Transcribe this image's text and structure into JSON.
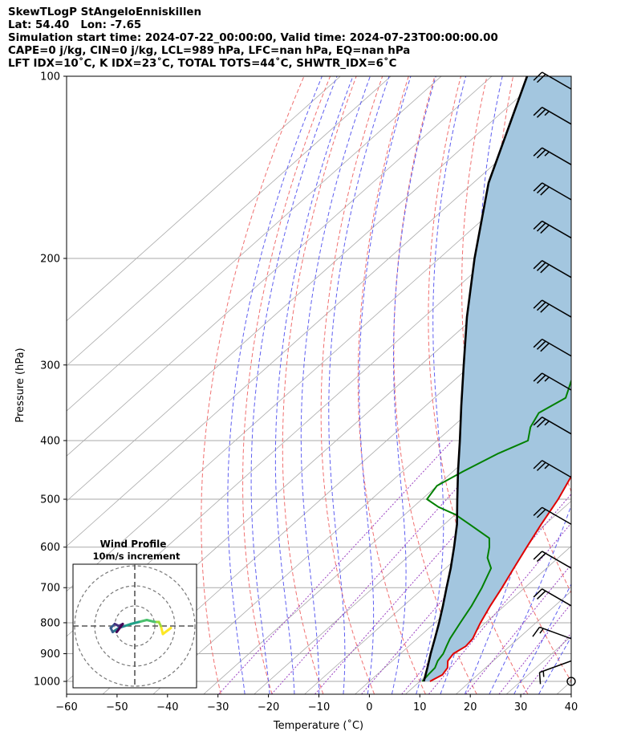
{
  "header": {
    "title": "SkewTLogP StAngeloEnniskillen",
    "location": "Lat: 54.40   Lon: -7.65",
    "times": "Simulation start time: 2024-07-22_00:00:00, Valid time: 2024-07-23T00:00:00.00",
    "params1": "CAPE=0 j/kg, CIN=0 j/kg, LCL=989 hPa, LFC=nan hPa, EQ=nan hPa",
    "params2": "LFT IDX=10˚C, K IDX=23˚C, TOTAL TOTS=44˚C, SHWTR_IDX=6˚C"
  },
  "colors": {
    "temperature": "#e00000",
    "dewpoint": "#008000",
    "parcel": "#000000",
    "cape_fill": "#a3c6df",
    "dry_adiabat": "#f07070",
    "moist_adiabat": "#5f5ff0",
    "mixing_ratio": "#9a40c0",
    "isotherm": "#aaaaaa",
    "barb": "#000000"
  },
  "chart_data": {
    "type": "line",
    "xlabel": "Temperature (˚C)",
    "ylabel": "Pressure (hPa)",
    "xlim": [
      -60,
      40
    ],
    "ylim": [
      1050,
      100
    ],
    "yscale": "log",
    "skewed": true,
    "x_ticks": [
      -60,
      -50,
      -40,
      -30,
      -20,
      -10,
      0,
      10,
      20,
      30,
      40
    ],
    "y_ticks": [
      1000,
      900,
      800,
      700,
      600,
      500,
      400,
      300,
      200,
      100
    ],
    "grid": true,
    "series": [
      {
        "role": "temperature",
        "points": [
          [
            1000,
            12
          ],
          [
            975,
            13
          ],
          [
            950,
            12.5
          ],
          [
            925,
            11
          ],
          [
            900,
            10.5
          ],
          [
            875,
            11.3
          ],
          [
            850,
            11
          ],
          [
            825,
            10
          ],
          [
            800,
            9
          ],
          [
            750,
            7.2
          ],
          [
            700,
            5.5
          ],
          [
            650,
            3.5
          ],
          [
            600,
            1.4
          ],
          [
            550,
            -0.8
          ],
          [
            500,
            -3
          ],
          [
            450,
            -6
          ],
          [
            400,
            -9.5
          ],
          [
            350,
            -14
          ],
          [
            320,
            -17.5
          ],
          [
            300,
            -21.5
          ],
          [
            290,
            -24
          ],
          [
            270,
            -27
          ],
          [
            250,
            -30
          ],
          [
            230,
            -34
          ],
          [
            210,
            -38
          ],
          [
            190,
            -43
          ],
          [
            175,
            -47.5
          ],
          [
            165,
            -51
          ],
          [
            150,
            -55
          ],
          [
            130,
            -60
          ],
          [
            120,
            -63
          ],
          [
            110,
            -66
          ],
          [
            100,
            -69
          ]
        ]
      },
      {
        "role": "dewpoint",
        "points": [
          [
            1000,
            10.5
          ],
          [
            975,
            10.2
          ],
          [
            950,
            10
          ],
          [
            925,
            9
          ],
          [
            900,
            8.5
          ],
          [
            875,
            7.5
          ],
          [
            850,
            6.5
          ],
          [
            800,
            5
          ],
          [
            750,
            3.5
          ],
          [
            700,
            1.5
          ],
          [
            650,
            -1
          ],
          [
            625,
            -4
          ],
          [
            600,
            -6
          ],
          [
            580,
            -8
          ],
          [
            550,
            -15
          ],
          [
            530,
            -20
          ],
          [
            515,
            -25
          ],
          [
            500,
            -29
          ],
          [
            475,
            -30
          ],
          [
            450,
            -28
          ],
          [
            420,
            -25
          ],
          [
            400,
            -22
          ],
          [
            380,
            -24.5
          ],
          [
            360,
            -26
          ],
          [
            340,
            -24
          ],
          [
            320,
            -26.5
          ],
          [
            300,
            -29
          ],
          [
            280,
            -31.5
          ],
          [
            260,
            -33
          ],
          [
            240,
            -36
          ],
          [
            220,
            -38
          ],
          [
            205,
            -41
          ],
          [
            190,
            -46
          ],
          [
            180,
            -54
          ],
          [
            160,
            -62
          ],
          [
            140,
            -68
          ],
          [
            120,
            -73
          ],
          [
            100,
            -80
          ]
        ]
      },
      {
        "role": "parcel",
        "points": [
          [
            1000,
            10.8
          ],
          [
            950,
            8.5
          ],
          [
            900,
            6
          ],
          [
            850,
            3.5
          ],
          [
            800,
            0.8
          ],
          [
            750,
            -2.2
          ],
          [
            700,
            -5.5
          ],
          [
            650,
            -9
          ],
          [
            600,
            -13
          ],
          [
            550,
            -17.5
          ],
          [
            500,
            -23
          ],
          [
            450,
            -29
          ],
          [
            400,
            -35.5
          ],
          [
            350,
            -43
          ],
          [
            300,
            -51.5
          ],
          [
            250,
            -61.5
          ],
          [
            200,
            -73
          ],
          [
            150,
            -87
          ],
          [
            100,
            -103
          ]
        ]
      }
    ],
    "cape_shading": true,
    "dry_adiabats_theta_C": [
      -30,
      -20,
      -10,
      0,
      10,
      20,
      30,
      40,
      50,
      60,
      70,
      80,
      90,
      100,
      110,
      120,
      130,
      140
    ],
    "moist_adiabats_thetaw_C": [
      -25,
      -20,
      -15,
      -10,
      -5,
      0,
      5,
      10,
      15,
      20,
      25,
      30,
      35
    ],
    "mixing_ratio_gkg": [
      0.4,
      1,
      2,
      4,
      7,
      10,
      16,
      24,
      32
    ],
    "wind_barbs": [
      {
        "p": 1000,
        "speed_kt": 0,
        "dir_deg": 0
      },
      {
        "p": 925,
        "speed_kt": 15,
        "dir_deg": 250
      },
      {
        "p": 850,
        "speed_kt": 15,
        "dir_deg": 290
      },
      {
        "p": 750,
        "speed_kt": 20,
        "dir_deg": 300
      },
      {
        "p": 650,
        "speed_kt": 20,
        "dir_deg": 300
      },
      {
        "p": 550,
        "speed_kt": 20,
        "dir_deg": 300
      },
      {
        "p": 460,
        "speed_kt": 25,
        "dir_deg": 300
      },
      {
        "p": 390,
        "speed_kt": 25,
        "dir_deg": 300
      },
      {
        "p": 330,
        "speed_kt": 25,
        "dir_deg": 300
      },
      {
        "p": 290,
        "speed_kt": 30,
        "dir_deg": 300
      },
      {
        "p": 250,
        "speed_kt": 30,
        "dir_deg": 300
      },
      {
        "p": 215,
        "speed_kt": 30,
        "dir_deg": 300
      },
      {
        "p": 185,
        "speed_kt": 30,
        "dir_deg": 300
      },
      {
        "p": 160,
        "speed_kt": 30,
        "dir_deg": 300
      },
      {
        "p": 140,
        "speed_kt": 25,
        "dir_deg": 300
      },
      {
        "p": 120,
        "speed_kt": 25,
        "dir_deg": 300
      },
      {
        "p": 105,
        "speed_kt": 20,
        "dir_deg": 300
      }
    ],
    "inset": {
      "title": "Wind Profile",
      "subtitle": "10m/s increment",
      "rings_ms": [
        10,
        20,
        30
      ],
      "hodograph_uv": [
        [
          18,
          -1
        ],
        [
          14,
          -4
        ],
        [
          13,
          0
        ],
        [
          12,
          2
        ],
        [
          10,
          2
        ],
        [
          6,
          3
        ],
        [
          2,
          2
        ],
        [
          -2,
          1
        ],
        [
          -5,
          0
        ],
        [
          -8,
          -1
        ],
        [
          -11,
          -3
        ],
        [
          -12,
          -1
        ],
        [
          -10,
          1
        ],
        [
          -8,
          0
        ],
        [
          -6,
          1
        ],
        [
          -9,
          -3
        ]
      ]
    }
  }
}
